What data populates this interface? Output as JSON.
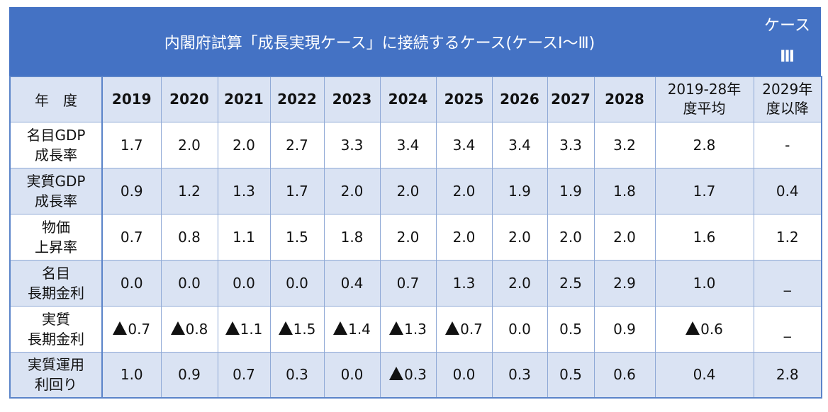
{
  "title": {
    "main": "内閣府試算「成長実現ケース」に接続するケース(ケースⅠ〜Ⅲ)",
    "case_line1": "ケース",
    "case_line2": "Ⅲ"
  },
  "header": {
    "label": "年　度",
    "years": [
      "2019",
      "2020",
      "2021",
      "2022",
      "2023",
      "2024",
      "2025",
      "2026",
      "2027",
      "2028"
    ],
    "avg_line1": "2019-28年",
    "avg_line2": "度平均",
    "after_line1": "2029年",
    "after_line2": "度以降"
  },
  "rows": [
    {
      "label1": "名目GDP",
      "label2": "成長率",
      "cells": [
        {
          "tri": false,
          "v": "1.7"
        },
        {
          "tri": false,
          "v": "2.0"
        },
        {
          "tri": false,
          "v": "2.0"
        },
        {
          "tri": false,
          "v": "2.7"
        },
        {
          "tri": false,
          "v": "3.3"
        },
        {
          "tri": false,
          "v": "3.4"
        },
        {
          "tri": false,
          "v": "3.4"
        },
        {
          "tri": false,
          "v": "3.4"
        },
        {
          "tri": false,
          "v": "3.3"
        },
        {
          "tri": false,
          "v": "3.2"
        },
        {
          "tri": false,
          "v": "2.8"
        },
        {
          "tri": false,
          "v": "-"
        }
      ]
    },
    {
      "label1": "実質GDP",
      "label2": "成長率",
      "cells": [
        {
          "tri": false,
          "v": "0.9"
        },
        {
          "tri": false,
          "v": "1.2"
        },
        {
          "tri": false,
          "v": "1.3"
        },
        {
          "tri": false,
          "v": "1.7"
        },
        {
          "tri": false,
          "v": "2.0"
        },
        {
          "tri": false,
          "v": "2.0"
        },
        {
          "tri": false,
          "v": "2.0"
        },
        {
          "tri": false,
          "v": "1.9"
        },
        {
          "tri": false,
          "v": "1.9"
        },
        {
          "tri": false,
          "v": "1.8"
        },
        {
          "tri": false,
          "v": "1.7"
        },
        {
          "tri": false,
          "v": "0.4"
        }
      ]
    },
    {
      "label1": "物価",
      "label2": "上昇率",
      "cells": [
        {
          "tri": false,
          "v": "0.7"
        },
        {
          "tri": false,
          "v": "0.8"
        },
        {
          "tri": false,
          "v": "1.1"
        },
        {
          "tri": false,
          "v": "1.5"
        },
        {
          "tri": false,
          "v": "1.8"
        },
        {
          "tri": false,
          "v": "2.0"
        },
        {
          "tri": false,
          "v": "2.0"
        },
        {
          "tri": false,
          "v": "2.0"
        },
        {
          "tri": false,
          "v": "2.0"
        },
        {
          "tri": false,
          "v": "2.0"
        },
        {
          "tri": false,
          "v": "1.6"
        },
        {
          "tri": false,
          "v": "1.2"
        }
      ]
    },
    {
      "label1": "名目",
      "label2": "長期金利",
      "cells": [
        {
          "tri": false,
          "v": "0.0"
        },
        {
          "tri": false,
          "v": "0.0"
        },
        {
          "tri": false,
          "v": "0.0"
        },
        {
          "tri": false,
          "v": "0.0"
        },
        {
          "tri": false,
          "v": "0.4"
        },
        {
          "tri": false,
          "v": "0.7"
        },
        {
          "tri": false,
          "v": "1.3"
        },
        {
          "tri": false,
          "v": "2.0"
        },
        {
          "tri": false,
          "v": "2.5"
        },
        {
          "tri": false,
          "v": "2.9"
        },
        {
          "tri": false,
          "v": "1.0"
        },
        {
          "tri": false,
          "v": "_"
        }
      ]
    },
    {
      "label1": "実質",
      "label2": "長期金利",
      "cells": [
        {
          "tri": true,
          "v": "0.7"
        },
        {
          "tri": true,
          "v": "0.8"
        },
        {
          "tri": true,
          "v": "1.1"
        },
        {
          "tri": true,
          "v": "1.5"
        },
        {
          "tri": true,
          "v": "1.4"
        },
        {
          "tri": true,
          "v": "1.3"
        },
        {
          "tri": true,
          "v": "0.7"
        },
        {
          "tri": false,
          "v": "0.0"
        },
        {
          "tri": false,
          "v": "0.5"
        },
        {
          "tri": false,
          "v": "0.9"
        },
        {
          "tri": true,
          "v": "0.6"
        },
        {
          "tri": false,
          "v": "_"
        }
      ]
    },
    {
      "label1": "実質運用",
      "label2": "利回り",
      "cells": [
        {
          "tri": false,
          "v": "1.0"
        },
        {
          "tri": false,
          "v": "0.9"
        },
        {
          "tri": false,
          "v": "0.7"
        },
        {
          "tri": false,
          "v": "0.3"
        },
        {
          "tri": false,
          "v": "0.0"
        },
        {
          "tri": true,
          "v": "0.3"
        },
        {
          "tri": false,
          "v": "0.0"
        },
        {
          "tri": false,
          "v": "0.3"
        },
        {
          "tri": false,
          "v": "0.5"
        },
        {
          "tri": false,
          "v": "0.6"
        },
        {
          "tri": false,
          "v": "0.4"
        },
        {
          "tri": false,
          "v": "2.8"
        }
      ]
    }
  ]
}
